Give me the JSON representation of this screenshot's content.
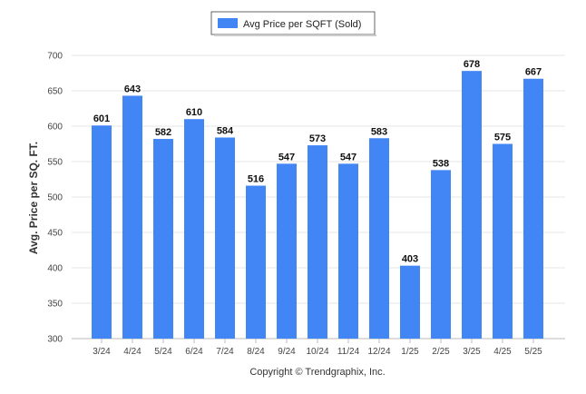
{
  "chart_data": {
    "type": "bar",
    "categories": [
      "3/24",
      "4/24",
      "5/24",
      "6/24",
      "7/24",
      "8/24",
      "9/24",
      "10/24",
      "11/24",
      "12/24",
      "1/25",
      "2/25",
      "3/25",
      "4/25",
      "5/25"
    ],
    "series": [
      {
        "name": "Avg Price per SQFT (Sold)",
        "values": [
          601,
          643,
          582,
          610,
          584,
          516,
          547,
          573,
          547,
          583,
          403,
          538,
          678,
          575,
          667
        ]
      }
    ],
    "ylabel": "Avg. Price per SQ. FT.",
    "xlabel": "",
    "ylim": [
      300,
      700
    ],
    "yticks": [
      300,
      350,
      400,
      450,
      500,
      550,
      600,
      650,
      700
    ],
    "grid": true,
    "legend": "top-center",
    "bar_color": "#4285f4"
  },
  "footer": {
    "copyright": "Copyright © Trendgraphix, Inc."
  }
}
